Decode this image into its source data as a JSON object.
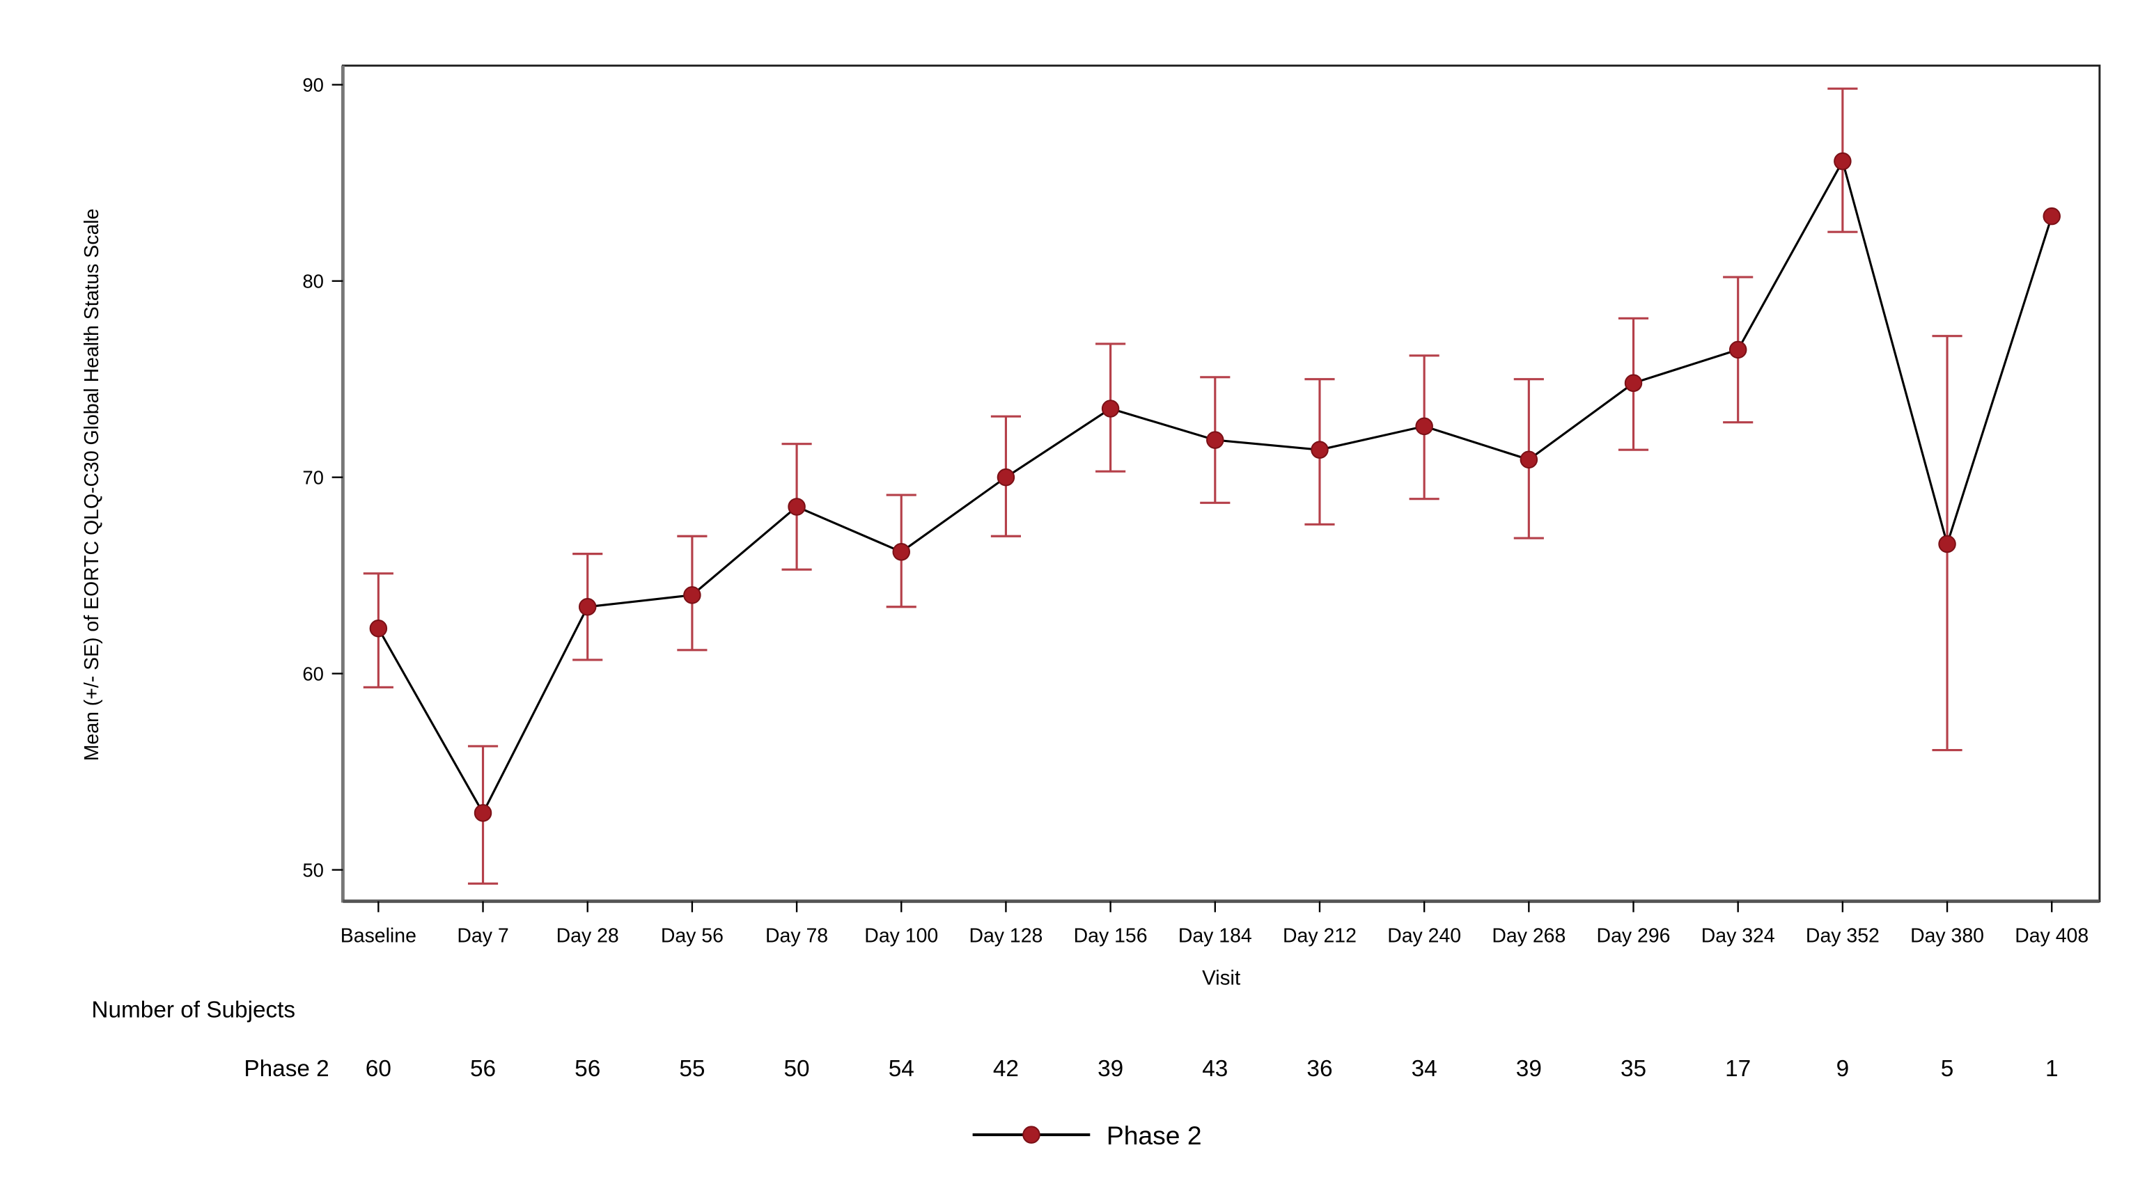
{
  "chart_data": {
    "type": "line",
    "title": "",
    "xlabel": "Visit",
    "ylabel": "Mean (+/- SE) of EORTC QLQ-C30 Global Health Status Scale",
    "ylim": [
      49,
      91
    ],
    "yticks": [
      50,
      60,
      70,
      80,
      90
    ],
    "grid": false,
    "legend_position": "bottom",
    "categories": [
      "Baseline",
      "Day 7",
      "Day 28",
      "Day 56",
      "Day 78",
      "Day 100",
      "Day 128",
      "Day 156",
      "Day 184",
      "Day 212",
      "Day 240",
      "Day 268",
      "Day 296",
      "Day 324",
      "Day 352",
      "Day 380",
      "Day 408"
    ],
    "series": [
      {
        "name": "Phase 2",
        "line_color": "#000000",
        "marker_color": "#a51c24",
        "errorbar_color": "#b5404a",
        "values": [
          62.3,
          52.9,
          63.4,
          64.0,
          68.5,
          66.2,
          70.0,
          73.5,
          71.9,
          71.4,
          72.6,
          70.9,
          74.8,
          76.5,
          86.1,
          66.6,
          83.3
        ],
        "upper": [
          65.1,
          56.3,
          66.1,
          67.0,
          71.7,
          69.1,
          73.1,
          76.8,
          75.1,
          75.0,
          76.2,
          75.0,
          78.1,
          80.2,
          89.8,
          77.2,
          null
        ],
        "lower": [
          59.3,
          49.3,
          60.7,
          61.2,
          65.3,
          63.4,
          67.0,
          70.3,
          68.7,
          67.6,
          68.9,
          66.9,
          71.4,
          72.8,
          82.5,
          56.1,
          null
        ]
      }
    ],
    "subjects_table": {
      "title": "Number of Subjects",
      "rows": [
        {
          "label": "Phase 2",
          "values": [
            60,
            56,
            56,
            55,
            50,
            54,
            42,
            39,
            43,
            36,
            34,
            39,
            35,
            17,
            9,
            5,
            1
          ]
        }
      ]
    }
  },
  "legend": {
    "items": [
      {
        "label": "Phase 2"
      }
    ]
  }
}
